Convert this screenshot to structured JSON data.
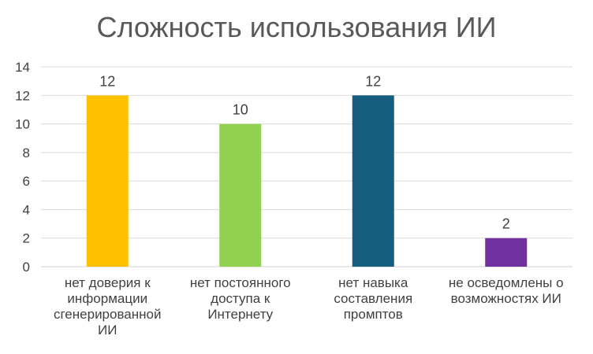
{
  "chart_data": {
    "type": "bar",
    "title": "Сложность использования ИИ",
    "categories": [
      "нет доверия к информации сгенерированной ИИ",
      "нет постоянного доступа к Интернету",
      "нет навыка составления промптов",
      "не осведомлены о возможностях ИИ"
    ],
    "values": [
      12,
      10,
      12,
      2
    ],
    "colors": [
      "#FFC000",
      "#92D050",
      "#165E80",
      "#7030A0"
    ],
    "ylim": [
      0,
      14
    ],
    "yticks": [
      0,
      2,
      4,
      6,
      8,
      10,
      12,
      14
    ],
    "grid": true,
    "legend": "none",
    "xlabel": "",
    "ylabel": ""
  }
}
